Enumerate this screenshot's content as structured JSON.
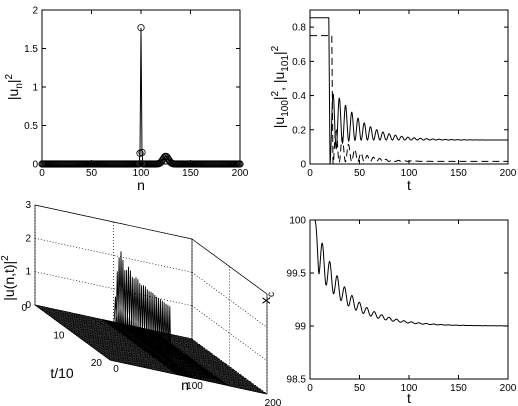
{
  "chart_data": [
    {
      "type": "scatter",
      "xlabel": "n",
      "ylabel_base": "|u",
      "ylabel_sub": "n",
      "ylabel_tail": "|",
      "ylabel_sup": "2",
      "xlim": [
        0,
        200
      ],
      "ylim": [
        0,
        2
      ],
      "xticks": [
        "0",
        "50",
        "100",
        "150",
        "200"
      ],
      "yticks": [
        "0",
        "0.5",
        "1",
        "1.5",
        "2"
      ],
      "grid": false,
      "spikes": [
        {
          "n": 99,
          "value": 0.14
        },
        {
          "n": 100,
          "value": 1.77
        },
        {
          "n": 101,
          "value": 0.15
        }
      ],
      "hump": {
        "center": 125,
        "width": 4,
        "height": 0.1
      },
      "baseline": 0
    },
    {
      "type": "line",
      "xlabel": "t",
      "ylabel_parts": [
        "|u",
        "100",
        "|",
        "2",
        ", |u",
        "101",
        "|",
        "2"
      ],
      "xlim": [
        0,
        200
      ],
      "ylim": [
        0,
        0.9
      ],
      "xticks": [
        "0",
        "50",
        "100",
        "150",
        "200"
      ],
      "yticks": [
        "0",
        "0.2",
        "0.4",
        "0.6",
        "0.8"
      ],
      "grid": false,
      "series": [
        {
          "style": "solid",
          "initial": 0.855,
          "drop_t": 19,
          "final": 0.14,
          "osc_amp": 0.4,
          "decay": 25,
          "period": 6.3
        },
        {
          "style": "dashed",
          "initial": 0.75,
          "drop_t": 22,
          "final": 0.015,
          "osc_amp": 0.24,
          "decay": 18,
          "period": 6.3
        }
      ]
    },
    {
      "type": "surface3d",
      "xlabel": "n",
      "ylabel": "t/10",
      "zlabel_base": "|u(n,t)|",
      "zlabel_sup": "2",
      "n_ticks": [
        "0",
        "100",
        "200"
      ],
      "t_ticks": [
        "0",
        "10",
        "20"
      ],
      "z_ticks": [
        "0",
        "1",
        "2",
        "3"
      ],
      "zlim": [
        0,
        3
      ],
      "grid": true,
      "ridge": {
        "n": 100,
        "t_end": 15,
        "peak": 2.4,
        "plateau": 1.7
      },
      "side_wave": {
        "start_n": 110,
        "end_n": 150,
        "height": 0.12
      }
    },
    {
      "type": "line",
      "xlabel": "t",
      "ylabel_base": "x",
      "ylabel_sub": "c",
      "xlim": [
        0,
        200
      ],
      "ylim": [
        98.5,
        100
      ],
      "xticks": [
        "0",
        "50",
        "100",
        "150",
        "200"
      ],
      "yticks": [
        "98.5",
        "99",
        "99.5",
        "100"
      ],
      "grid": false,
      "series": [
        {
          "style": "solid",
          "initial": 100.0,
          "start_t": 5,
          "final": 99.0,
          "osc_amp": 0.45,
          "decay": 28,
          "period": 7.5
        }
      ]
    }
  ]
}
